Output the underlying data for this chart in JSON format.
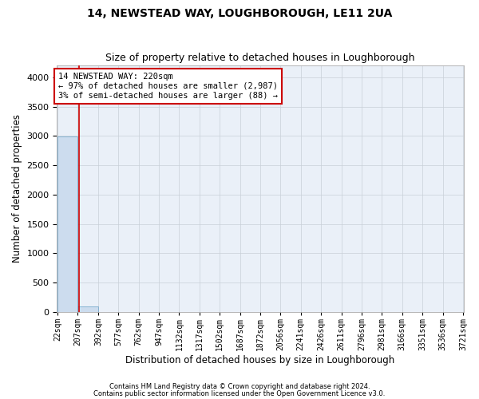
{
  "title": "14, NEWSTEAD WAY, LOUGHBOROUGH, LE11 2UA",
  "subtitle": "Size of property relative to detached houses in Loughborough",
  "xlabel": "Distribution of detached houses by size in Loughborough",
  "ylabel": "Number of detached properties",
  "footnote1": "Contains HM Land Registry data © Crown copyright and database right 2024.",
  "footnote2": "Contains public sector information licensed under the Open Government Licence v3.0.",
  "bar_edges": [
    22,
    207,
    392,
    577,
    762,
    947,
    1132,
    1317,
    1502,
    1687,
    1872,
    2056,
    2241,
    2426,
    2611,
    2796,
    2981,
    3166,
    3351,
    3536,
    3721
  ],
  "bar_heights": [
    2987,
    88,
    0,
    0,
    0,
    0,
    0,
    0,
    0,
    0,
    0,
    0,
    0,
    0,
    0,
    0,
    0,
    0,
    0,
    0
  ],
  "bar_color": "#ccdcee",
  "bar_edge_color": "#7aabcc",
  "property_line_x": 220,
  "property_line_color": "#cc0000",
  "annotation_text": "14 NEWSTEAD WAY: 220sqm\n← 97% of detached houses are smaller (2,987)\n3% of semi-detached houses are larger (88) →",
  "annotation_box_color": "#ffffff",
  "annotation_box_edge_color": "#cc0000",
  "ylim": [
    0,
    4200
  ],
  "yticks": [
    0,
    500,
    1000,
    1500,
    2000,
    2500,
    3000,
    3500,
    4000
  ],
  "bg_color": "#ffffff",
  "plot_bg_color": "#eaf0f8",
  "grid_color": "#c8cfd8",
  "title_fontsize": 10,
  "subtitle_fontsize": 9,
  "tick_label_fontsize": 7,
  "axis_label_fontsize": 8.5,
  "annotation_fontsize": 7.5
}
